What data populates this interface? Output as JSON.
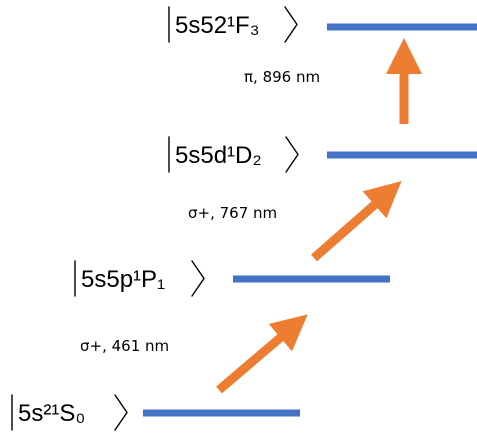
{
  "colors": {
    "level_bar": "#4472C4",
    "arrow": "#ED7D31",
    "text": "#000000"
  },
  "levels": [
    {
      "id": "F3",
      "label": "5s52¹F₃"
    },
    {
      "id": "D2",
      "label": "5s5d¹D₂"
    },
    {
      "id": "P1",
      "label": "5s5p¹P₁"
    },
    {
      "id": "S0",
      "label": "5s²¹S₀"
    }
  ],
  "transitions": [
    {
      "from": "D2",
      "to": "F3",
      "label": "π, 896 nm"
    },
    {
      "from": "P1",
      "to": "D2",
      "label": "σ+, 767 nm"
    },
    {
      "from": "S0",
      "to": "P1",
      "label": "σ+, 461 nm"
    }
  ]
}
